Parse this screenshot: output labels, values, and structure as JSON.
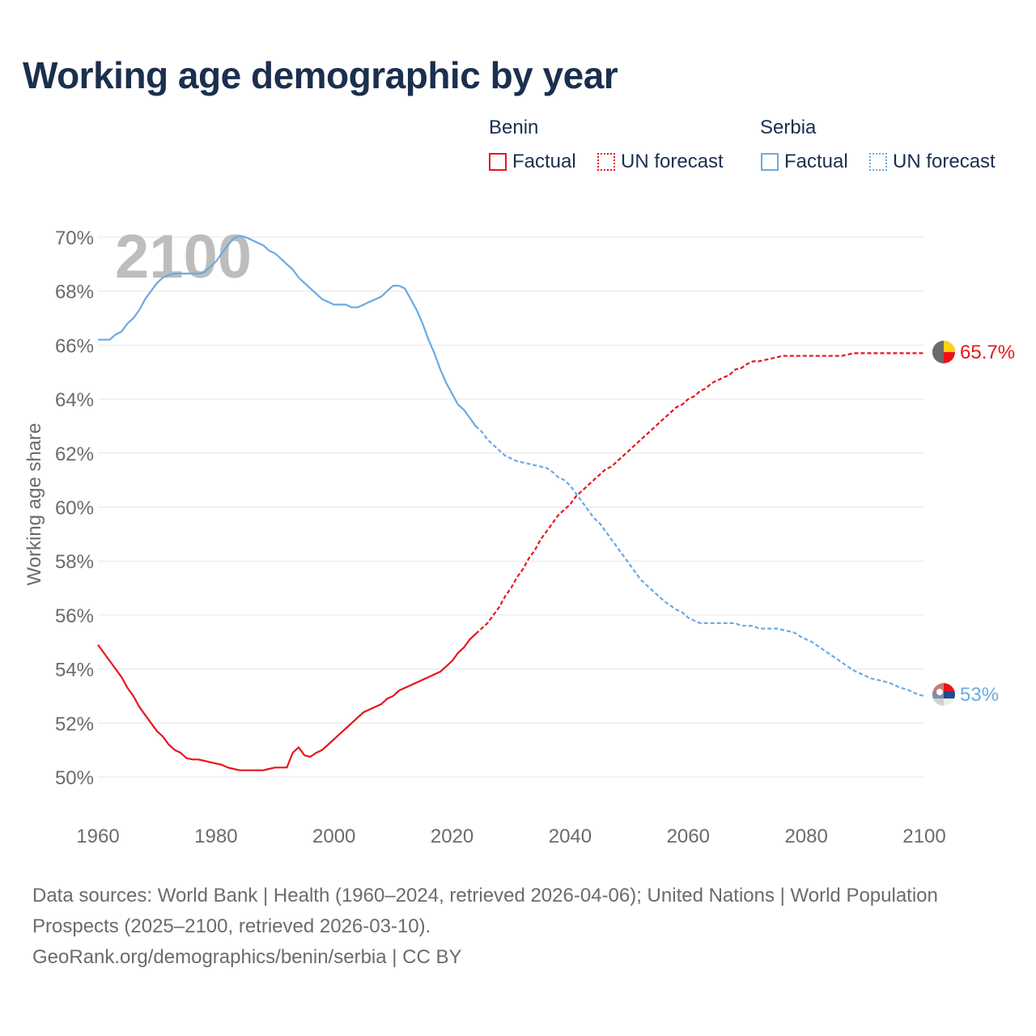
{
  "title": "Working age demographic by year",
  "legend": {
    "groups": [
      {
        "name": "Benin",
        "color": "#e8141d",
        "factual_label": "Factual",
        "forecast_label": "UN forecast"
      },
      {
        "name": "Serbia",
        "color": "#6aaae4",
        "factual_label": "Factual",
        "forecast_label": "UN forecast"
      }
    ]
  },
  "year_watermark": "2100",
  "end_labels": {
    "benin": "65.7%",
    "serbia": "53%"
  },
  "footer": {
    "sources": "Data sources: World Bank | Health (1960–2024, retrieved 2026-04-06); United Nations | World Population Prospects (2025–2100, retrieved 2026-03-10).",
    "credit": "GeoRank.org/demographics/benin/serbia | CC BY"
  },
  "chart_data": {
    "type": "line",
    "title": "Working age demographic by year",
    "xlabel": "",
    "ylabel": "Working age share",
    "xlim": [
      1960,
      2100
    ],
    "ylim": [
      49,
      71
    ],
    "x_ticks": [
      1960,
      1980,
      2000,
      2020,
      2040,
      2060,
      2080,
      2100
    ],
    "x_tick_labels": [
      "1960",
      "1980",
      "2000",
      "2020",
      "2040",
      "2060",
      "2080",
      "2100"
    ],
    "y_ticks": [
      50,
      52,
      54,
      56,
      58,
      60,
      62,
      64,
      66,
      68,
      70
    ],
    "y_tick_labels": [
      "50%",
      "52%",
      "54%",
      "56%",
      "58%",
      "60%",
      "62%",
      "64%",
      "66%",
      "68%",
      "70%"
    ],
    "grid": true,
    "factual_range": [
      1960,
      2024
    ],
    "forecast_range": [
      2024,
      2100
    ],
    "series": [
      {
        "name": "Benin",
        "color": "#e8141d",
        "points": [
          [
            1960,
            54.9
          ],
          [
            1961,
            54.6
          ],
          [
            1962,
            54.3
          ],
          [
            1963,
            54.0
          ],
          [
            1964,
            53.7
          ],
          [
            1965,
            53.3
          ],
          [
            1966,
            53.0
          ],
          [
            1967,
            52.6
          ],
          [
            1968,
            52.3
          ],
          [
            1969,
            52.0
          ],
          [
            1970,
            51.7
          ],
          [
            1971,
            51.5
          ],
          [
            1972,
            51.2
          ],
          [
            1973,
            51.0
          ],
          [
            1974,
            50.9
          ],
          [
            1975,
            50.7
          ],
          [
            1976,
            50.65
          ],
          [
            1977,
            50.65
          ],
          [
            1978,
            50.6
          ],
          [
            1979,
            50.55
          ],
          [
            1980,
            50.5
          ],
          [
            1981,
            50.45
          ],
          [
            1982,
            50.35
          ],
          [
            1983,
            50.3
          ],
          [
            1984,
            50.25
          ],
          [
            1985,
            50.25
          ],
          [
            1986,
            50.25
          ],
          [
            1987,
            50.25
          ],
          [
            1988,
            50.25
          ],
          [
            1989,
            50.3
          ],
          [
            1990,
            50.35
          ],
          [
            1991,
            50.35
          ],
          [
            1992,
            50.35
          ],
          [
            1993,
            50.9
          ],
          [
            1994,
            51.1
          ],
          [
            1995,
            50.8
          ],
          [
            1996,
            50.75
          ],
          [
            1997,
            50.9
          ],
          [
            1998,
            51.0
          ],
          [
            1999,
            51.2
          ],
          [
            2000,
            51.4
          ],
          [
            2001,
            51.6
          ],
          [
            2002,
            51.8
          ],
          [
            2003,
            52.0
          ],
          [
            2004,
            52.2
          ],
          [
            2005,
            52.4
          ],
          [
            2006,
            52.5
          ],
          [
            2007,
            52.6
          ],
          [
            2008,
            52.7
          ],
          [
            2009,
            52.9
          ],
          [
            2010,
            53.0
          ],
          [
            2011,
            53.2
          ],
          [
            2012,
            53.3
          ],
          [
            2013,
            53.4
          ],
          [
            2014,
            53.5
          ],
          [
            2015,
            53.6
          ],
          [
            2016,
            53.7
          ],
          [
            2017,
            53.8
          ],
          [
            2018,
            53.9
          ],
          [
            2019,
            54.1
          ],
          [
            2020,
            54.3
          ],
          [
            2021,
            54.6
          ],
          [
            2022,
            54.8
          ],
          [
            2023,
            55.1
          ],
          [
            2024,
            55.3
          ],
          [
            2025,
            55.5
          ],
          [
            2026,
            55.7
          ],
          [
            2027,
            56.0
          ],
          [
            2028,
            56.3
          ],
          [
            2029,
            56.7
          ],
          [
            2030,
            57.0
          ],
          [
            2031,
            57.4
          ],
          [
            2032,
            57.7
          ],
          [
            2033,
            58.1
          ],
          [
            2034,
            58.4
          ],
          [
            2035,
            58.8
          ],
          [
            2036,
            59.1
          ],
          [
            2037,
            59.4
          ],
          [
            2038,
            59.7
          ],
          [
            2039,
            59.9
          ],
          [
            2040,
            60.1
          ],
          [
            2041,
            60.4
          ],
          [
            2042,
            60.6
          ],
          [
            2043,
            60.8
          ],
          [
            2044,
            61.0
          ],
          [
            2045,
            61.2
          ],
          [
            2046,
            61.4
          ],
          [
            2047,
            61.5
          ],
          [
            2048,
            61.7
          ],
          [
            2049,
            61.9
          ],
          [
            2050,
            62.1
          ],
          [
            2051,
            62.3
          ],
          [
            2052,
            62.5
          ],
          [
            2053,
            62.7
          ],
          [
            2054,
            62.9
          ],
          [
            2055,
            63.1
          ],
          [
            2056,
            63.3
          ],
          [
            2057,
            63.5
          ],
          [
            2058,
            63.7
          ],
          [
            2059,
            63.8
          ],
          [
            2060,
            64.0
          ],
          [
            2061,
            64.1
          ],
          [
            2062,
            64.3
          ],
          [
            2063,
            64.4
          ],
          [
            2064,
            64.6
          ],
          [
            2065,
            64.7
          ],
          [
            2066,
            64.8
          ],
          [
            2067,
            64.9
          ],
          [
            2068,
            65.1
          ],
          [
            2069,
            65.15
          ],
          [
            2070,
            65.3
          ],
          [
            2071,
            65.4
          ],
          [
            2072,
            65.4
          ],
          [
            2073,
            65.45
          ],
          [
            2074,
            65.5
          ],
          [
            2075,
            65.55
          ],
          [
            2076,
            65.6
          ],
          [
            2077,
            65.6
          ],
          [
            2078,
            65.6
          ],
          [
            2079,
            65.6
          ],
          [
            2080,
            65.6
          ],
          [
            2081,
            65.6
          ],
          [
            2082,
            65.6
          ],
          [
            2083,
            65.6
          ],
          [
            2084,
            65.6
          ],
          [
            2085,
            65.6
          ],
          [
            2086,
            65.6
          ],
          [
            2087,
            65.65
          ],
          [
            2088,
            65.7
          ],
          [
            2089,
            65.7
          ],
          [
            2090,
            65.7
          ],
          [
            2091,
            65.7
          ],
          [
            2092,
            65.7
          ],
          [
            2093,
            65.7
          ],
          [
            2094,
            65.7
          ],
          [
            2095,
            65.7
          ],
          [
            2096,
            65.7
          ],
          [
            2097,
            65.7
          ],
          [
            2098,
            65.7
          ],
          [
            2099,
            65.7
          ],
          [
            2100,
            65.7
          ]
        ]
      },
      {
        "name": "Serbia",
        "color": "#6aaae4",
        "points": [
          [
            1960,
            66.2
          ],
          [
            1961,
            66.2
          ],
          [
            1962,
            66.2
          ],
          [
            1963,
            66.4
          ],
          [
            1964,
            66.5
          ],
          [
            1965,
            66.8
          ],
          [
            1966,
            67.0
          ],
          [
            1967,
            67.3
          ],
          [
            1968,
            67.7
          ],
          [
            1969,
            68.0
          ],
          [
            1970,
            68.3
          ],
          [
            1971,
            68.5
          ],
          [
            1972,
            68.6
          ],
          [
            1973,
            68.65
          ],
          [
            1974,
            68.65
          ],
          [
            1975,
            68.65
          ],
          [
            1976,
            68.65
          ],
          [
            1977,
            68.65
          ],
          [
            1978,
            68.7
          ],
          [
            1979,
            68.9
          ],
          [
            1980,
            69.1
          ],
          [
            1981,
            69.4
          ],
          [
            1982,
            69.7
          ],
          [
            1983,
            69.95
          ],
          [
            1984,
            70.05
          ],
          [
            1985,
            70.0
          ],
          [
            1986,
            69.9
          ],
          [
            1987,
            69.8
          ],
          [
            1988,
            69.7
          ],
          [
            1989,
            69.5
          ],
          [
            1990,
            69.4
          ],
          [
            1991,
            69.2
          ],
          [
            1992,
            69.0
          ],
          [
            1993,
            68.8
          ],
          [
            1994,
            68.5
          ],
          [
            1995,
            68.3
          ],
          [
            1996,
            68.1
          ],
          [
            1997,
            67.9
          ],
          [
            1998,
            67.7
          ],
          [
            1999,
            67.6
          ],
          [
            2000,
            67.5
          ],
          [
            2001,
            67.5
          ],
          [
            2002,
            67.5
          ],
          [
            2003,
            67.4
          ],
          [
            2004,
            67.4
          ],
          [
            2005,
            67.5
          ],
          [
            2006,
            67.6
          ],
          [
            2007,
            67.7
          ],
          [
            2008,
            67.8
          ],
          [
            2009,
            68.0
          ],
          [
            2010,
            68.2
          ],
          [
            2011,
            68.2
          ],
          [
            2012,
            68.1
          ],
          [
            2013,
            67.7
          ],
          [
            2014,
            67.3
          ],
          [
            2015,
            66.8
          ],
          [
            2016,
            66.2
          ],
          [
            2017,
            65.7
          ],
          [
            2018,
            65.1
          ],
          [
            2019,
            64.6
          ],
          [
            2020,
            64.2
          ],
          [
            2021,
            63.8
          ],
          [
            2022,
            63.6
          ],
          [
            2023,
            63.3
          ],
          [
            2024,
            63.0
          ],
          [
            2025,
            62.8
          ],
          [
            2026,
            62.5
          ],
          [
            2027,
            62.3
          ],
          [
            2028,
            62.1
          ],
          [
            2029,
            61.9
          ],
          [
            2030,
            61.8
          ],
          [
            2031,
            61.7
          ],
          [
            2032,
            61.65
          ],
          [
            2033,
            61.6
          ],
          [
            2034,
            61.55
          ],
          [
            2035,
            61.5
          ],
          [
            2036,
            61.45
          ],
          [
            2037,
            61.3
          ],
          [
            2038,
            61.1
          ],
          [
            2039,
            61.0
          ],
          [
            2040,
            60.8
          ],
          [
            2041,
            60.5
          ],
          [
            2042,
            60.2
          ],
          [
            2043,
            59.9
          ],
          [
            2044,
            59.6
          ],
          [
            2045,
            59.4
          ],
          [
            2046,
            59.1
          ],
          [
            2047,
            58.8
          ],
          [
            2048,
            58.5
          ],
          [
            2049,
            58.2
          ],
          [
            2050,
            57.9
          ],
          [
            2051,
            57.6
          ],
          [
            2052,
            57.3
          ],
          [
            2053,
            57.1
          ],
          [
            2054,
            56.9
          ],
          [
            2055,
            56.7
          ],
          [
            2056,
            56.5
          ],
          [
            2057,
            56.35
          ],
          [
            2058,
            56.2
          ],
          [
            2059,
            56.1
          ],
          [
            2060,
            55.9
          ],
          [
            2061,
            55.8
          ],
          [
            2062,
            55.7
          ],
          [
            2063,
            55.7
          ],
          [
            2064,
            55.7
          ],
          [
            2065,
            55.7
          ],
          [
            2066,
            55.7
          ],
          [
            2067,
            55.7
          ],
          [
            2068,
            55.7
          ],
          [
            2069,
            55.6
          ],
          [
            2070,
            55.6
          ],
          [
            2071,
            55.6
          ],
          [
            2072,
            55.5
          ],
          [
            2073,
            55.5
          ],
          [
            2074,
            55.5
          ],
          [
            2075,
            55.5
          ],
          [
            2076,
            55.45
          ],
          [
            2077,
            55.4
          ],
          [
            2078,
            55.35
          ],
          [
            2079,
            55.2
          ],
          [
            2080,
            55.1
          ],
          [
            2081,
            55.0
          ],
          [
            2082,
            54.85
          ],
          [
            2083,
            54.7
          ],
          [
            2084,
            54.55
          ],
          [
            2085,
            54.4
          ],
          [
            2086,
            54.25
          ],
          [
            2087,
            54.1
          ],
          [
            2088,
            53.95
          ],
          [
            2089,
            53.85
          ],
          [
            2090,
            53.75
          ],
          [
            2091,
            53.65
          ],
          [
            2092,
            53.6
          ],
          [
            2093,
            53.55
          ],
          [
            2094,
            53.5
          ],
          [
            2095,
            53.4
          ],
          [
            2096,
            53.3
          ],
          [
            2097,
            53.25
          ],
          [
            2098,
            53.15
          ],
          [
            2099,
            53.05
          ],
          [
            2100,
            53.0
          ]
        ]
      }
    ]
  }
}
